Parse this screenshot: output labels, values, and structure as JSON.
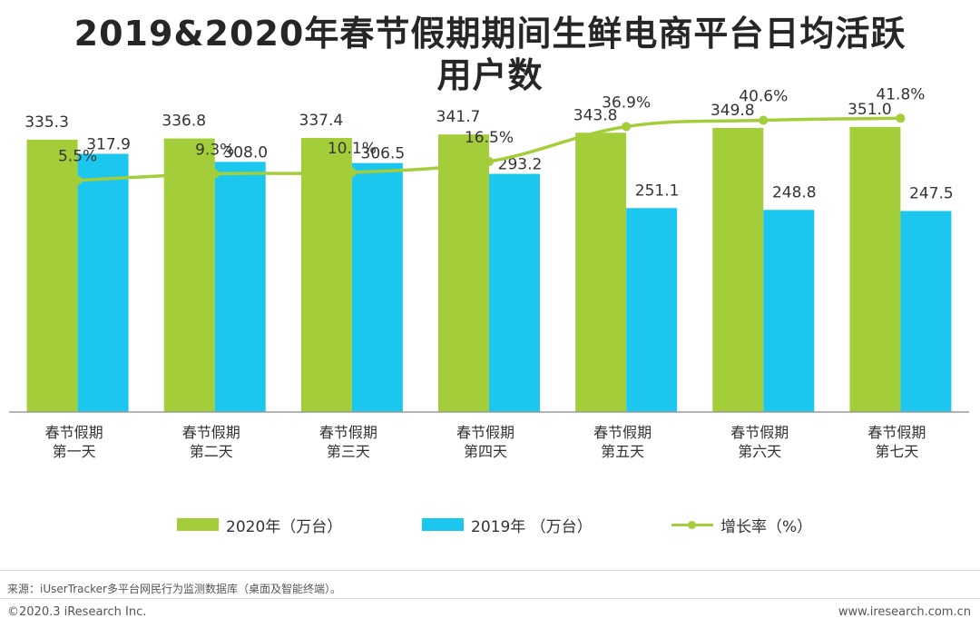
{
  "title": {
    "line1": "2019&2020年春节假期期间生鲜电商平台日均活跃",
    "line2": "用户数"
  },
  "chart_data": {
    "type": "bar",
    "categories": [
      [
        "春节假期",
        "第一天"
      ],
      [
        "春节假期",
        "第二天"
      ],
      [
        "春节假期",
        "第三天"
      ],
      [
        "春节假期",
        "第四天"
      ],
      [
        "春节假期",
        "第五天"
      ],
      [
        "春节假期",
        "第六天"
      ],
      [
        "春节假期",
        "第七天"
      ]
    ],
    "series": [
      {
        "name": "2020年（万台）",
        "type": "bar",
        "color": "#a4cd3a",
        "values": [
          335.3,
          336.8,
          337.4,
          341.7,
          343.8,
          349.8,
          351.0
        ],
        "labels": [
          "335.3",
          "336.8",
          "337.4",
          "341.7",
          "343.8",
          "349.8",
          "351.0"
        ]
      },
      {
        "name": "2019年 （万台）",
        "type": "bar",
        "color": "#1cc7ef",
        "values": [
          317.9,
          308.0,
          306.5,
          293.2,
          251.1,
          248.8,
          247.5
        ],
        "labels": [
          "317.9",
          "308.0",
          "306.5",
          "293.2",
          "251.1",
          "248.8",
          "247.5"
        ]
      },
      {
        "name": "增长率（%）",
        "type": "line",
        "color": "#a4cd3a",
        "axis": "secondary",
        "values": [
          5.5,
          9.3,
          10.1,
          16.5,
          36.9,
          40.6,
          41.8
        ],
        "labels": [
          "5.5%",
          "9.3%",
          "10.1%",
          "16.5%",
          "36.9%",
          "40.6%",
          "41.8%"
        ]
      }
    ],
    "ylim": [
      0,
      400
    ],
    "y2lim": [
      -130,
      60
    ],
    "grid": false,
    "legend": "bottom"
  },
  "footer": {
    "source": "来源：iUserTracker多平台网民行为监测数据库（桌面及智能终端）。",
    "copyright": "©2020.3 iResearch Inc.",
    "website": "www.iresearch.com.cn"
  }
}
